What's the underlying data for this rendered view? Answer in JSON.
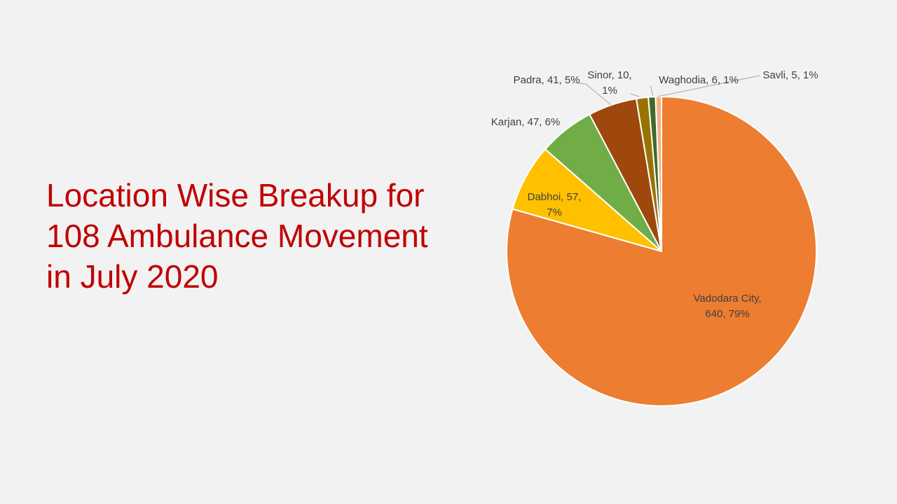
{
  "slide": {
    "title_lines": [
      "Location Wise Breakup for",
      "108 Ambulance Movement",
      "in July 2020"
    ]
  },
  "chart_data": {
    "type": "pie",
    "title": "",
    "legend": "none",
    "start_angle_deg": 0,
    "direction": "clockwise",
    "slices": [
      {
        "category": "Vadodara City",
        "value": 640,
        "percent": "79%",
        "color": "#ed7d31",
        "label_lines": [
          "Vadodara City,",
          "640, 79%"
        ]
      },
      {
        "category": "Dabhoi",
        "value": 57,
        "percent": "7%",
        "color": "#ffc000",
        "label_lines": [
          "Dabhoi, 57,",
          "7%"
        ]
      },
      {
        "category": "Karjan",
        "value": 47,
        "percent": "6%",
        "color": "#70ad47",
        "label_lines": [
          "Karjan, 47, 6%"
        ]
      },
      {
        "category": "Padra",
        "value": 41,
        "percent": "5%",
        "color": "#9e480e",
        "label_lines": [
          "Padra, 41, 5%"
        ]
      },
      {
        "category": "Sinor",
        "value": 10,
        "percent": "1%",
        "color": "#997300",
        "label_lines": [
          "Sinor, 10,",
          "1%"
        ]
      },
      {
        "category": "Waghodia",
        "value": 6,
        "percent": "1%",
        "color": "#43682b",
        "label_lines": [
          "Waghodia, 6, 1%"
        ]
      },
      {
        "category": "Savli",
        "value": 5,
        "percent": "1%",
        "color": "#f4b183",
        "label_lines": [
          "Savli, 5, 1%"
        ]
      }
    ]
  }
}
